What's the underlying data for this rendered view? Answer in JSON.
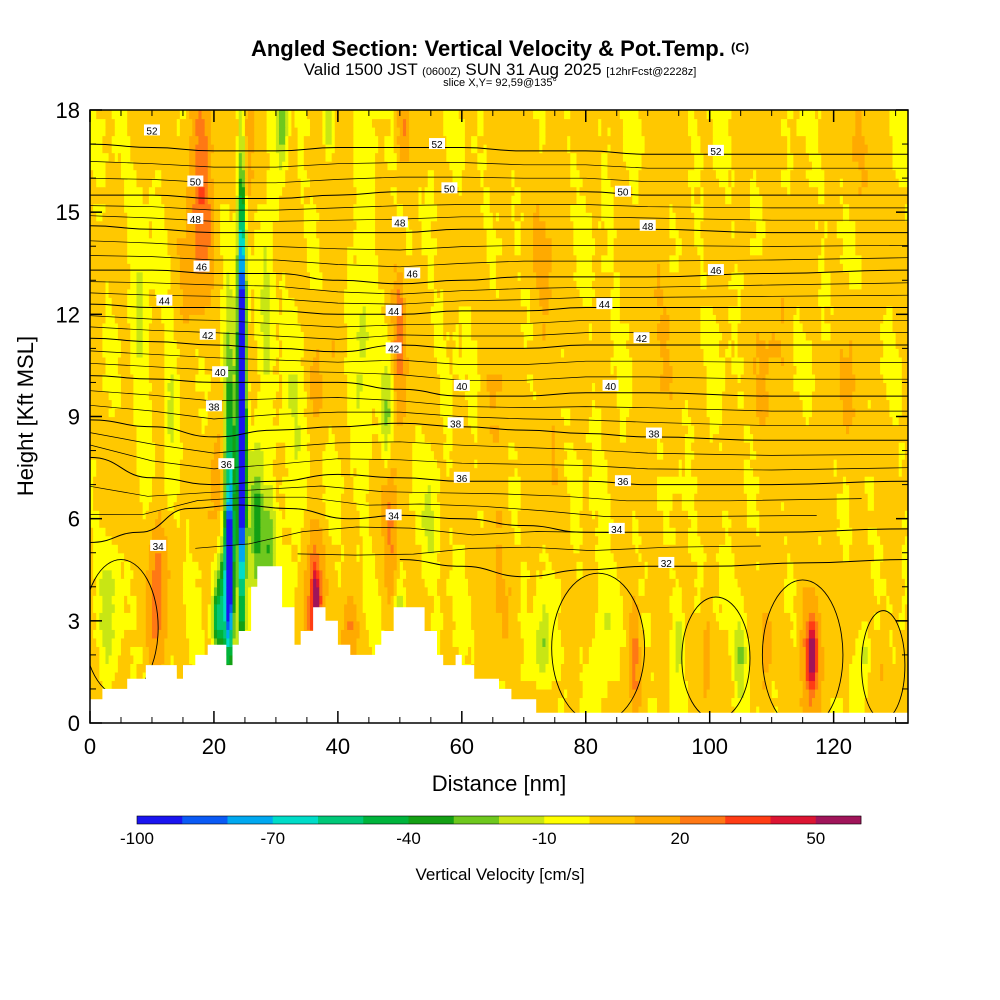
{
  "title": {
    "main": "Angled Section: Vertical Velocity & Pot.Temp.",
    "main_suffix": "(C)",
    "valid_prefix": "Valid 1500 JST",
    "valid_utc": "(0600Z)",
    "valid_date": "SUN 31 Aug 2025",
    "forecast": "[12hrFcst@2228z]",
    "slice": "slice X,Y= 92,59@135°"
  },
  "chart_data": {
    "type": "heatmap",
    "title": "Angled Section: Vertical Velocity & Pot.Temp.",
    "xlabel": "Distance [nm]",
    "ylabel": "Height [Kft MSL]",
    "xlim": [
      0,
      132
    ],
    "ylim": [
      0,
      18
    ],
    "xticks": [
      "0",
      "20",
      "40",
      "60",
      "80",
      "100",
      "120"
    ],
    "yticks": [
      "0",
      "3",
      "6",
      "9",
      "12",
      "15",
      "18"
    ],
    "colorbar": {
      "label": "Vertical Velocity [cm/s]",
      "tick_labels": [
        "-100",
        "-70",
        "-40",
        "-10",
        "20",
        "50"
      ],
      "bins": [
        -100,
        -90,
        -80,
        -70,
        -60,
        -50,
        -40,
        -30,
        -20,
        -10,
        0,
        10,
        20,
        30,
        40,
        50,
        60
      ],
      "colors": [
        "#1a14f0",
        "#0a5af5",
        "#00a8f0",
        "#00dcc8",
        "#00c878",
        "#00b43c",
        "#14a014",
        "#6ec81e",
        "#c8e614",
        "#ffff00",
        "#ffc800",
        "#ffaa00",
        "#ff7814",
        "#ff3c14",
        "#dc1432",
        "#a0145a"
      ]
    },
    "terrain_kft": [
      [
        0,
        0.7
      ],
      [
        2,
        1.0
      ],
      [
        6,
        1.3
      ],
      [
        9,
        1.7
      ],
      [
        12,
        1.7
      ],
      [
        14,
        1.3
      ],
      [
        15,
        1.7
      ],
      [
        17,
        2.0
      ],
      [
        19,
        2.3
      ],
      [
        21,
        2.3
      ],
      [
        22,
        1.7
      ],
      [
        23,
        2.3
      ],
      [
        24,
        2.7
      ],
      [
        26,
        4.0
      ],
      [
        27,
        4.6
      ],
      [
        29,
        4.6
      ],
      [
        31,
        3.4
      ],
      [
        33,
        2.3
      ],
      [
        34,
        2.7
      ],
      [
        36,
        3.4
      ],
      [
        38,
        3.0
      ],
      [
        40,
        2.3
      ],
      [
        42,
        2.0
      ],
      [
        45,
        2.0
      ],
      [
        46,
        2.3
      ],
      [
        47,
        2.7
      ],
      [
        49,
        3.4
      ],
      [
        52,
        3.4
      ],
      [
        54,
        2.7
      ],
      [
        56,
        2.0
      ],
      [
        57,
        1.7
      ],
      [
        59,
        2.0
      ],
      [
        60,
        1.7
      ],
      [
        62,
        1.3
      ],
      [
        66,
        1.0
      ],
      [
        68,
        0.7
      ],
      [
        72,
        0.3
      ],
      [
        132,
        0.3
      ]
    ],
    "theta_contours": [
      {
        "level": "32",
        "points": [
          [
            50,
            4.8
          ],
          [
            60,
            4.6
          ],
          [
            70,
            4.3
          ],
          [
            80,
            4.5
          ],
          [
            90,
            4.6
          ],
          [
            100,
            4.6
          ],
          [
            115,
            4.7
          ],
          [
            132,
            4.8
          ]
        ]
      },
      {
        "level": "34",
        "points": [
          [
            0,
            5.3
          ],
          [
            8,
            5.6
          ],
          [
            16,
            6.3
          ],
          [
            24,
            6.4
          ],
          [
            32,
            6.3
          ],
          [
            42,
            6.0
          ],
          [
            50,
            6.1
          ],
          [
            60,
            6.0
          ],
          [
            70,
            5.8
          ],
          [
            80,
            5.6
          ],
          [
            90,
            5.6
          ],
          [
            110,
            5.6
          ],
          [
            132,
            5.7
          ]
        ]
      },
      {
        "level": "36",
        "points": [
          [
            0,
            7.8
          ],
          [
            10,
            7.2
          ],
          [
            20,
            7.0
          ],
          [
            30,
            7.1
          ],
          [
            40,
            7.3
          ],
          [
            50,
            7.2
          ],
          [
            60,
            7.1
          ],
          [
            70,
            7.1
          ],
          [
            80,
            7.1
          ],
          [
            90,
            7.0
          ],
          [
            110,
            7.0
          ],
          [
            132,
            7.1
          ]
        ]
      },
      {
        "level": "38",
        "points": [
          [
            0,
            8.9
          ],
          [
            10,
            8.7
          ],
          [
            20,
            8.4
          ],
          [
            30,
            8.6
          ],
          [
            40,
            8.7
          ],
          [
            50,
            8.8
          ],
          [
            60,
            8.7
          ],
          [
            70,
            8.6
          ],
          [
            80,
            8.5
          ],
          [
            90,
            8.4
          ],
          [
            110,
            8.3
          ],
          [
            132,
            8.3
          ]
        ]
      },
      {
        "level": "40",
        "points": [
          [
            0,
            10.2
          ],
          [
            10,
            10.1
          ],
          [
            20,
            10.0
          ],
          [
            30,
            10.0
          ],
          [
            40,
            10.0
          ],
          [
            50,
            9.8
          ],
          [
            60,
            9.6
          ],
          [
            70,
            9.6
          ],
          [
            80,
            9.7
          ],
          [
            90,
            9.7
          ],
          [
            110,
            9.6
          ],
          [
            132,
            9.6
          ]
        ]
      },
      {
        "level": "42",
        "points": [
          [
            0,
            11.3
          ],
          [
            10,
            11.2
          ],
          [
            20,
            11.1
          ],
          [
            30,
            11.0
          ],
          [
            40,
            10.9
          ],
          [
            50,
            11.1
          ],
          [
            60,
            11.0
          ],
          [
            70,
            11.0
          ],
          [
            80,
            11.1
          ],
          [
            90,
            11.1
          ],
          [
            110,
            11.1
          ],
          [
            132,
            11.1
          ]
        ]
      },
      {
        "level": "44",
        "points": [
          [
            0,
            12.3
          ],
          [
            10,
            12.2
          ],
          [
            20,
            12.2
          ],
          [
            30,
            12.1
          ],
          [
            40,
            12.0
          ],
          [
            50,
            12.0
          ],
          [
            60,
            12.1
          ],
          [
            70,
            12.1
          ],
          [
            80,
            12.2
          ],
          [
            90,
            12.2
          ],
          [
            110,
            12.2
          ],
          [
            132,
            12.2
          ]
        ]
      },
      {
        "level": "46",
        "points": [
          [
            0,
            13.3
          ],
          [
            10,
            13.3
          ],
          [
            20,
            13.2
          ],
          [
            30,
            13.2
          ],
          [
            40,
            13.0
          ],
          [
            50,
            12.9
          ],
          [
            60,
            13.0
          ],
          [
            70,
            13.1
          ],
          [
            80,
            13.1
          ],
          [
            90,
            13.1
          ],
          [
            110,
            13.2
          ],
          [
            132,
            13.3
          ]
        ]
      },
      {
        "level": "48",
        "points": [
          [
            0,
            14.6
          ],
          [
            10,
            14.5
          ],
          [
            20,
            14.4
          ],
          [
            30,
            14.4
          ],
          [
            40,
            14.4
          ],
          [
            50,
            14.4
          ],
          [
            60,
            14.5
          ],
          [
            70,
            14.5
          ],
          [
            80,
            14.5
          ],
          [
            90,
            14.5
          ],
          [
            110,
            14.4
          ],
          [
            132,
            14.4
          ]
        ]
      },
      {
        "level": "50",
        "points": [
          [
            0,
            15.5
          ],
          [
            10,
            15.5
          ],
          [
            20,
            15.4
          ],
          [
            30,
            15.4
          ],
          [
            40,
            15.5
          ],
          [
            50,
            15.6
          ],
          [
            60,
            15.6
          ],
          [
            70,
            15.6
          ],
          [
            80,
            15.6
          ],
          [
            90,
            15.5
          ],
          [
            110,
            15.5
          ],
          [
            132,
            15.5
          ]
        ]
      },
      {
        "level": "52",
        "points": [
          [
            0,
            17.0
          ],
          [
            10,
            16.9
          ],
          [
            20,
            16.8
          ],
          [
            30,
            16.8
          ],
          [
            40,
            16.9
          ],
          [
            50,
            16.9
          ],
          [
            60,
            16.9
          ],
          [
            70,
            16.8
          ],
          [
            80,
            16.8
          ],
          [
            90,
            16.7
          ],
          [
            110,
            16.7
          ],
          [
            132,
            16.7
          ]
        ]
      }
    ],
    "theta_labels": [
      {
        "text": "52",
        "x": 10,
        "y": 17.4
      },
      {
        "text": "52",
        "x": 56,
        "y": 17.0
      },
      {
        "text": "52",
        "x": 101,
        "y": 16.8
      },
      {
        "text": "50",
        "x": 17,
        "y": 15.9
      },
      {
        "text": "50",
        "x": 58,
        "y": 15.7
      },
      {
        "text": "50",
        "x": 86,
        "y": 15.6
      },
      {
        "text": "48",
        "x": 17,
        "y": 14.8
      },
      {
        "text": "48",
        "x": 50,
        "y": 14.7
      },
      {
        "text": "48",
        "x": 90,
        "y": 14.6
      },
      {
        "text": "46",
        "x": 18,
        "y": 13.4
      },
      {
        "text": "46",
        "x": 52,
        "y": 13.2
      },
      {
        "text": "46",
        "x": 101,
        "y": 13.3
      },
      {
        "text": "44",
        "x": 12,
        "y": 12.4
      },
      {
        "text": "44",
        "x": 49,
        "y": 12.1
      },
      {
        "text": "44",
        "x": 83,
        "y": 12.3
      },
      {
        "text": "42",
        "x": 19,
        "y": 11.4
      },
      {
        "text": "42",
        "x": 49,
        "y": 11.0
      },
      {
        "text": "42",
        "x": 89,
        "y": 11.3
      },
      {
        "text": "40",
        "x": 21,
        "y": 10.3
      },
      {
        "text": "40",
        "x": 60,
        "y": 9.9
      },
      {
        "text": "40",
        "x": 84,
        "y": 9.9
      },
      {
        "text": "38",
        "x": 20,
        "y": 9.3
      },
      {
        "text": "38",
        "x": 59,
        "y": 8.8
      },
      {
        "text": "38",
        "x": 91,
        "y": 8.5
      },
      {
        "text": "36",
        "x": 22,
        "y": 7.6
      },
      {
        "text": "36",
        "x": 60,
        "y": 7.2
      },
      {
        "text": "36",
        "x": 86,
        "y": 7.1
      },
      {
        "text": "34",
        "x": 11,
        "y": 5.2
      },
      {
        "text": "34",
        "x": 49,
        "y": 6.1
      },
      {
        "text": "34",
        "x": 85,
        "y": 5.7
      },
      {
        "text": "32",
        "x": 93,
        "y": 4.7
      }
    ],
    "velocity_features": [
      {
        "x": 24.5,
        "y": 9.5,
        "w": 0.8,
        "h": 8.0,
        "v": -72
      },
      {
        "x": 24.5,
        "y": 9.5,
        "w": 0.4,
        "h": 5.0,
        "v": -92
      },
      {
        "x": 22.5,
        "y": 7.0,
        "w": 0.9,
        "h": 4.5,
        "v": -55
      },
      {
        "x": 22.5,
        "y": 4.5,
        "w": 0.6,
        "h": 2.2,
        "v": -75
      },
      {
        "x": 21.5,
        "y": 3.5,
        "w": 1.3,
        "h": 1.8,
        "v": -40
      },
      {
        "x": 27.0,
        "y": 5.8,
        "w": 1.2,
        "h": 2.2,
        "v": -38
      },
      {
        "x": 29.0,
        "y": 5.2,
        "w": 1.0,
        "h": 1.5,
        "v": -30
      },
      {
        "x": 28.5,
        "y": 12.5,
        "w": 1.0,
        "h": 2.5,
        "v": -20
      },
      {
        "x": 31.0,
        "y": 17.5,
        "w": 0.8,
        "h": 1.0,
        "v": -30
      },
      {
        "x": 38.5,
        "y": 17.5,
        "w": 0.8,
        "h": 1.0,
        "v": -20
      },
      {
        "x": 48.0,
        "y": 9.0,
        "w": 1.0,
        "h": 1.5,
        "v": -25
      },
      {
        "x": 50.0,
        "y": 3.3,
        "w": 1.0,
        "h": 0.8,
        "v": -20
      },
      {
        "x": 20.5,
        "y": 3.0,
        "w": 0.8,
        "h": 0.8,
        "v": -38
      },
      {
        "x": 73.0,
        "y": 2.2,
        "w": 1.2,
        "h": 1.2,
        "v": -22
      },
      {
        "x": 95.0,
        "y": 2.5,
        "w": 1.0,
        "h": 1.6,
        "v": -15
      },
      {
        "x": 105.0,
        "y": 2.0,
        "w": 1.0,
        "h": 1.4,
        "v": -22
      },
      {
        "x": 125.0,
        "y": 2.0,
        "w": 0.8,
        "h": 0.8,
        "v": -15
      },
      {
        "x": 18.0,
        "y": 16.0,
        "w": 2.0,
        "h": 4.0,
        "v": 25
      },
      {
        "x": 25.0,
        "y": 16.5,
        "w": 1.2,
        "h": 3.0,
        "v": 22
      },
      {
        "x": 11.0,
        "y": 4.0,
        "w": 1.5,
        "h": 2.8,
        "v": 22
      },
      {
        "x": 36.0,
        "y": 3.5,
        "w": 1.5,
        "h": 2.5,
        "v": 28
      },
      {
        "x": 36.5,
        "y": 3.6,
        "w": 0.6,
        "h": 0.8,
        "v": 45
      },
      {
        "x": 42.0,
        "y": 2.7,
        "w": 1.5,
        "h": 1.0,
        "v": 20
      },
      {
        "x": 48.5,
        "y": 6.0,
        "w": 1.2,
        "h": 2.5,
        "v": 22
      },
      {
        "x": 50.0,
        "y": 11.5,
        "w": 1.2,
        "h": 2.5,
        "v": 22
      },
      {
        "x": 50.5,
        "y": 17.5,
        "w": 1.0,
        "h": 1.2,
        "v": 15
      },
      {
        "x": 36.5,
        "y": 10.0,
        "w": 1.5,
        "h": 1.5,
        "v": 12
      },
      {
        "x": 20.5,
        "y": 6.8,
        "w": 1.5,
        "h": 2.0,
        "v": 15
      },
      {
        "x": 88.0,
        "y": 2.2,
        "w": 1.0,
        "h": 1.8,
        "v": 20
      },
      {
        "x": 99.5,
        "y": 2.0,
        "w": 0.8,
        "h": 1.6,
        "v": 18
      },
      {
        "x": 116.5,
        "y": 2.2,
        "w": 2.0,
        "h": 2.0,
        "v": 25
      },
      {
        "x": 116.5,
        "y": 2.0,
        "w": 0.8,
        "h": 0.8,
        "v": 35
      },
      {
        "x": 109.0,
        "y": 2.0,
        "w": 1.0,
        "h": 1.6,
        "v": 15
      },
      {
        "x": 128.0,
        "y": 2.0,
        "w": 0.8,
        "h": 1.6,
        "v": 10
      },
      {
        "x": 66.0,
        "y": 7.5,
        "w": 2.0,
        "h": 6.0,
        "v": 8
      },
      {
        "x": 74.0,
        "y": 13.0,
        "w": 2.5,
        "h": 6.0,
        "v": 8
      },
      {
        "x": 92.0,
        "y": 12.0,
        "w": 3.0,
        "h": 4.0,
        "v": 7
      },
      {
        "x": 110.0,
        "y": 10.5,
        "w": 3.0,
        "h": 4.0,
        "v": 8
      },
      {
        "x": 125.0,
        "y": 16.5,
        "w": 2.5,
        "h": 2.5,
        "v": 7
      },
      {
        "x": 122.0,
        "y": 9.0,
        "w": 3.0,
        "h": 2.5,
        "v": 7
      },
      {
        "x": 15.0,
        "y": 13.5,
        "w": 2.0,
        "h": 3.0,
        "v": 6
      },
      {
        "x": 6.0,
        "y": 8.0,
        "w": 2.0,
        "h": 3.0,
        "v": 6
      },
      {
        "x": 40.0,
        "y": 14.5,
        "w": 2.5,
        "h": 3.0,
        "v": 6
      },
      {
        "x": 3.0,
        "y": 3.5,
        "w": 1.5,
        "h": 2.0,
        "v": -14
      },
      {
        "x": 8.0,
        "y": 11.0,
        "w": 1.5,
        "h": 4.0,
        "v": -12
      },
      {
        "x": 33.0,
        "y": 8.0,
        "w": 2.0,
        "h": 3.0,
        "v": -12
      },
      {
        "x": 44.0,
        "y": 12.0,
        "w": 2.0,
        "h": 5.0,
        "v": -12
      },
      {
        "x": 55.0,
        "y": 6.0,
        "w": 1.5,
        "h": 1.5,
        "v": -14
      },
      {
        "x": 83.0,
        "y": 3.0,
        "w": 1.5,
        "h": 2.0,
        "v": -12
      },
      {
        "x": 13.0,
        "y": 9.0,
        "w": 1.0,
        "h": 2.5,
        "v": -14
      }
    ]
  }
}
